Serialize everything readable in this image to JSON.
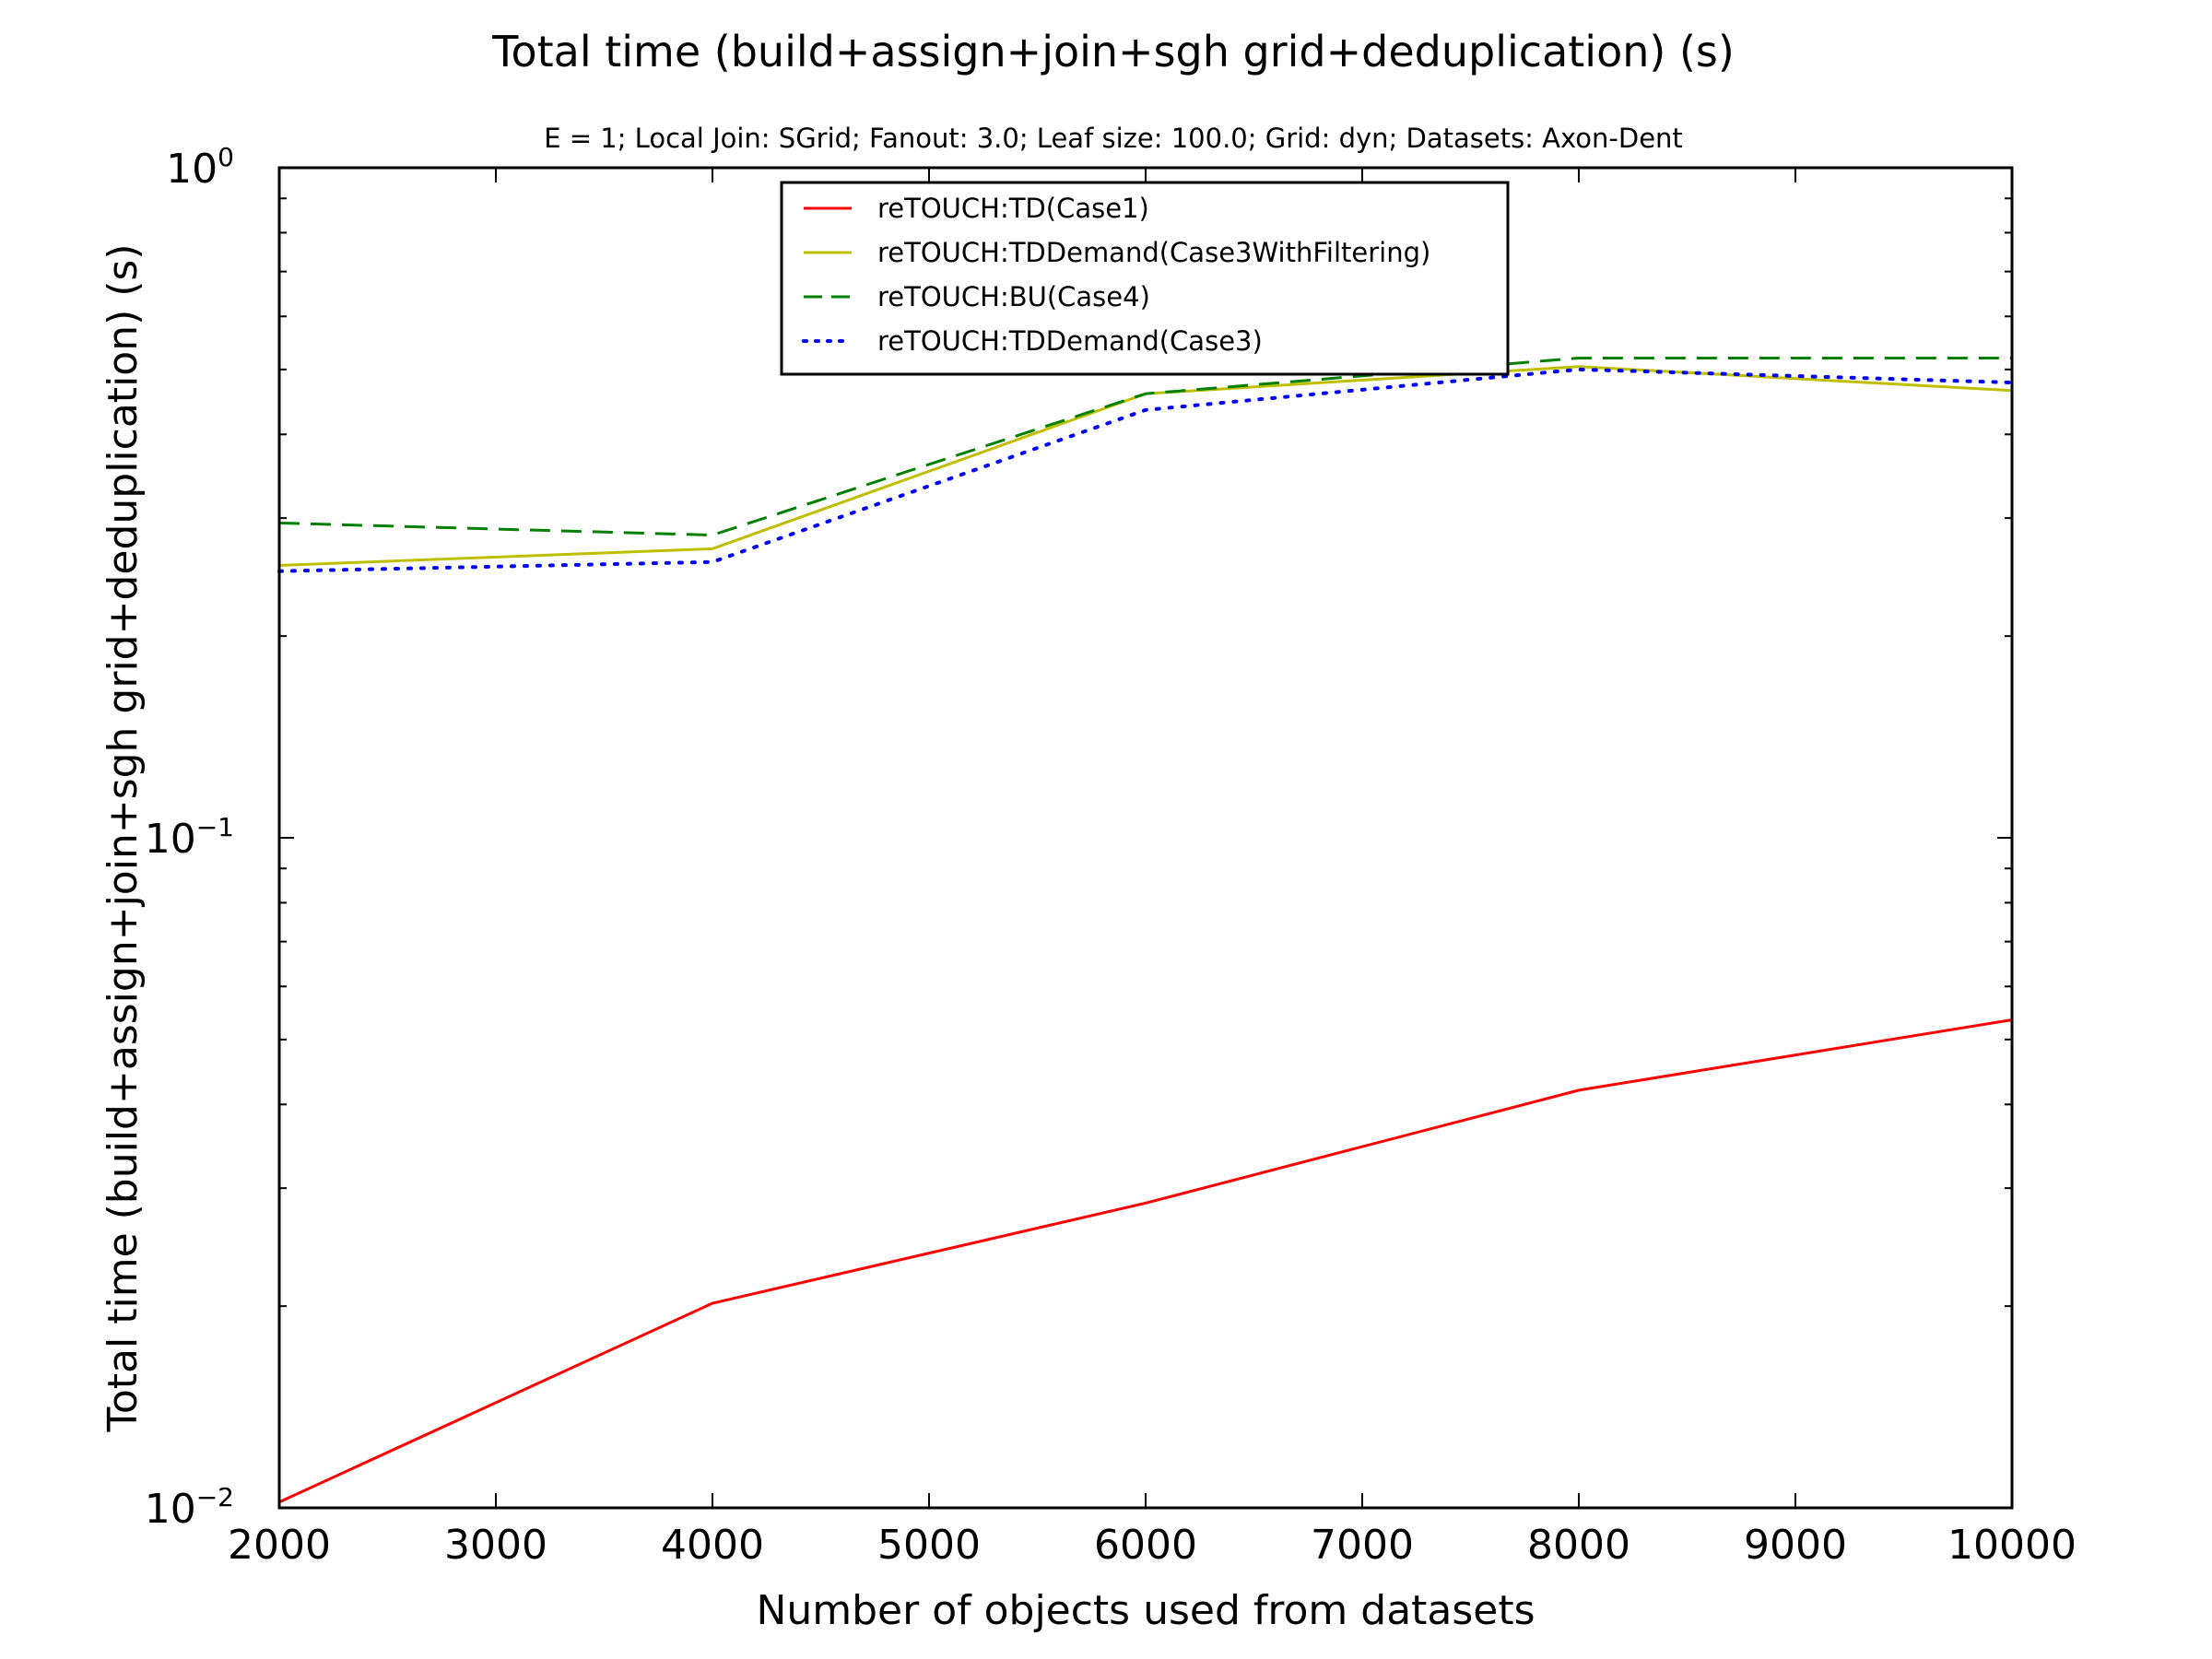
{
  "chart_data": {
    "type": "line",
    "title": "Total time (build+assign+join+sgh grid+deduplication) (s)",
    "subtitle": "E = 1; Local Join: SGrid; Fanout: 3.0; Leaf size: 100.0; Grid: dyn; Datasets: Axon-Dent",
    "xlabel": "Number of objects used from datasets",
    "ylabel": "Total time (build+assign+join+sgh grid+deduplication) (s)",
    "x": [
      2000,
      4000,
      6000,
      8000,
      10000
    ],
    "xlim": [
      2000,
      10000
    ],
    "xticks": [
      "2000",
      "3000",
      "4000",
      "5000",
      "6000",
      "7000",
      "8000",
      "9000",
      "10000"
    ],
    "ylim": [
      0.01,
      1
    ],
    "yscale": "log",
    "yticks": [
      {
        "value": 1,
        "base": "10",
        "exp": "0"
      },
      {
        "value": 0.1,
        "base": "10",
        "exp": "−1"
      },
      {
        "value": 0.01,
        "base": "10",
        "exp": "−2"
      }
    ],
    "grid": false,
    "legend_position": "top-center",
    "series": [
      {
        "name": "reTOUCH:TD(Case1)",
        "color": "#ff0000",
        "style": "solid",
        "values": [
          0.0102,
          0.0202,
          0.0285,
          0.042,
          0.0535
        ]
      },
      {
        "name": "reTOUCH:TDDemand(Case3WithFiltering)",
        "color": "#bfbf00",
        "style": "solid",
        "values": [
          0.255,
          0.27,
          0.46,
          0.505,
          0.465
        ]
      },
      {
        "name": "reTOUCH:BU(Case4)",
        "color": "#008000",
        "style": "dashed",
        "values": [
          0.295,
          0.283,
          0.46,
          0.52,
          0.52
        ]
      },
      {
        "name": "reTOUCH:TDDemand(Case3)",
        "color": "#0000ff",
        "style": "dotted",
        "values": [
          0.25,
          0.258,
          0.435,
          0.5,
          0.478
        ]
      }
    ]
  }
}
